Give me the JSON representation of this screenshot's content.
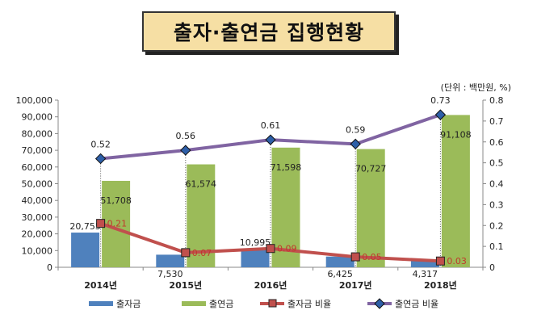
{
  "chart_data": {
    "type": "bar",
    "title": "출자·출연금 집행현황",
    "unit_label": "(단위 : 백만원, %)",
    "categories": [
      "2014년",
      "2015년",
      "2016년",
      "2017년",
      "2018년"
    ],
    "y_left": {
      "min": 0,
      "max": 100000,
      "ticks": [
        "0",
        "10,000",
        "20,000",
        "30,000",
        "40,000",
        "50,000",
        "60,000",
        "70,000",
        "80,000",
        "90,000",
        "100,000"
      ]
    },
    "y_right": {
      "min": 0,
      "max": 0.8,
      "ticks": [
        "0",
        "0.1",
        "0.2",
        "0.3",
        "0.4",
        "0.5",
        "0.6",
        "0.7",
        "0.8"
      ]
    },
    "grid": false,
    "legend_position": "bottom",
    "series": [
      {
        "name": "출자금",
        "type": "bar",
        "axis": "left",
        "color": "#4f81bd",
        "values": [
          20755,
          7530,
          10995,
          6425,
          4317
        ],
        "labels": [
          "20,755",
          "7,530",
          "10,995",
          "6,425",
          "4,317"
        ]
      },
      {
        "name": "출연금",
        "type": "bar",
        "axis": "left",
        "color": "#9bbb59",
        "values": [
          51708,
          61574,
          71598,
          70727,
          91108
        ],
        "labels": [
          "51,708",
          "61,574",
          "71,598",
          "70,727",
          "91,108"
        ]
      },
      {
        "name": "출자금 비율",
        "type": "line",
        "axis": "right",
        "color": "#c0504d",
        "values": [
          0.21,
          0.07,
          0.09,
          0.05,
          0.03
        ],
        "labels": [
          "0.21",
          "0.07",
          "0.09",
          "0.05",
          "0.03"
        ]
      },
      {
        "name": "출연금 비율",
        "type": "line",
        "axis": "right",
        "color": "#8064a2",
        "values": [
          0.52,
          0.56,
          0.61,
          0.59,
          0.73
        ],
        "labels": [
          "0.52",
          "0.56",
          "0.61",
          "0.59",
          "0.73"
        ]
      }
    ]
  }
}
